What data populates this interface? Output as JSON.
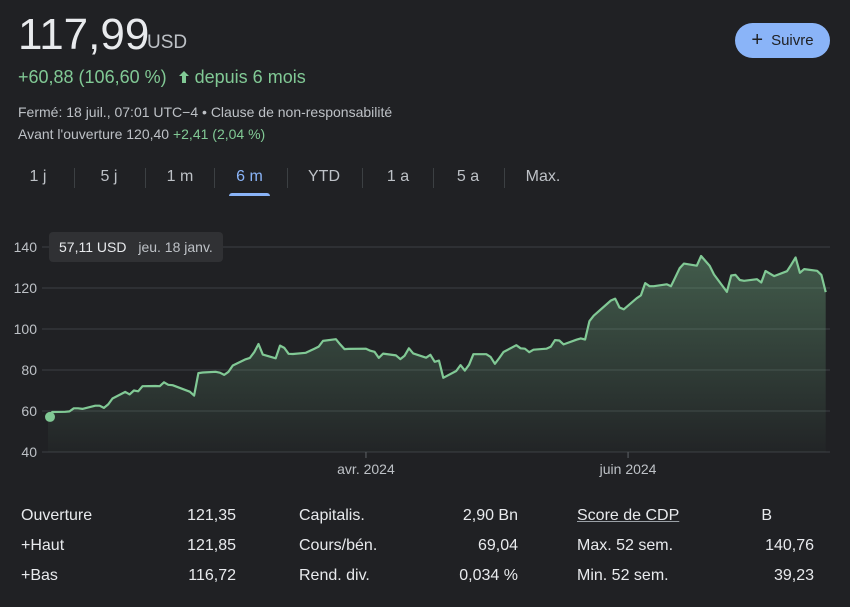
{
  "header": {
    "price": "117,99",
    "currency": "USD",
    "change": "+60,88 (106,60 %)",
    "change_period": "depuis 6 mois",
    "closed_text": "Fermé: 18 juil., 07:01 UTC−4 • Clause de non-responsabilité",
    "preopen_label": "Avant l'ouverture 120,40",
    "preopen_change": "+2,41 (2,04 %)",
    "follow_label": "Suivre"
  },
  "tabs": [
    "1 j",
    "5 j",
    "1 m",
    "6 m",
    "YTD",
    "1 a",
    "5 a",
    "Max."
  ],
  "active_tab": "6 m",
  "tooltip": {
    "value": "57,11 USD",
    "date": "jeu. 18 janv."
  },
  "chart_data": {
    "type": "area",
    "x_start": "2024-01-18",
    "x_end": "2024-07-18",
    "y_ticks": [
      40,
      60,
      80,
      100,
      120,
      140
    ],
    "ylim": [
      40,
      140
    ],
    "x_tick_labels": [
      {
        "label": "avr. 2024",
        "date": "2024-04-01"
      },
      {
        "label": "juin 2024",
        "date": "2024-06-01"
      }
    ],
    "grid": true,
    "line_color": "#81c995",
    "series": [
      {
        "points": [
          [
            "2024-01-18",
            57.1
          ],
          [
            "2024-01-19",
            59.5
          ],
          [
            "2024-01-22",
            59.6
          ],
          [
            "2024-01-23",
            59.8
          ],
          [
            "2024-01-24",
            61.3
          ],
          [
            "2024-01-25",
            61.3
          ],
          [
            "2024-01-26",
            61.0
          ],
          [
            "2024-01-29",
            62.6
          ],
          [
            "2024-01-30",
            62.6
          ],
          [
            "2024-01-31",
            61.5
          ],
          [
            "2024-02-01",
            63.2
          ],
          [
            "2024-02-02",
            66.1
          ],
          [
            "2024-02-05",
            69.3
          ],
          [
            "2024-02-06",
            68.1
          ],
          [
            "2024-02-07",
            70.0
          ],
          [
            "2024-02-08",
            69.6
          ],
          [
            "2024-02-09",
            72.1
          ],
          [
            "2024-02-12",
            72.2
          ],
          [
            "2024-02-13",
            72.1
          ],
          [
            "2024-02-14",
            74.0
          ],
          [
            "2024-02-15",
            72.8
          ],
          [
            "2024-02-16",
            72.6
          ],
          [
            "2024-02-20",
            69.4
          ],
          [
            "2024-02-21",
            67.5
          ],
          [
            "2024-02-22",
            78.5
          ],
          [
            "2024-02-23",
            78.8
          ],
          [
            "2024-02-26",
            79.1
          ],
          [
            "2024-02-27",
            78.7
          ],
          [
            "2024-02-28",
            77.6
          ],
          [
            "2024-02-29",
            79.1
          ],
          [
            "2024-03-01",
            82.2
          ],
          [
            "2024-03-04",
            85.2
          ],
          [
            "2024-03-05",
            85.9
          ],
          [
            "2024-03-06",
            88.7
          ],
          [
            "2024-03-07",
            92.7
          ],
          [
            "2024-03-08",
            87.5
          ],
          [
            "2024-03-11",
            85.7
          ],
          [
            "2024-03-12",
            91.9
          ],
          [
            "2024-03-13",
            90.8
          ],
          [
            "2024-03-14",
            87.9
          ],
          [
            "2024-03-15",
            87.8
          ],
          [
            "2024-03-18",
            88.4
          ],
          [
            "2024-03-19",
            89.4
          ],
          [
            "2024-03-20",
            90.4
          ],
          [
            "2024-03-21",
            91.4
          ],
          [
            "2024-03-22",
            94.2
          ],
          [
            "2024-03-25",
            95.0
          ],
          [
            "2024-03-26",
            92.5
          ],
          [
            "2024-03-27",
            90.2
          ],
          [
            "2024-03-28",
            90.3
          ],
          [
            "2024-04-01",
            90.4
          ],
          [
            "2024-04-02",
            89.4
          ],
          [
            "2024-04-03",
            88.9
          ],
          [
            "2024-04-04",
            85.9
          ],
          [
            "2024-04-05",
            88.0
          ],
          [
            "2024-04-08",
            87.1
          ],
          [
            "2024-04-09",
            85.3
          ],
          [
            "2024-04-10",
            87.0
          ],
          [
            "2024-04-11",
            90.6
          ],
          [
            "2024-04-12",
            88.1
          ],
          [
            "2024-04-15",
            86.0
          ],
          [
            "2024-04-16",
            87.4
          ],
          [
            "2024-04-17",
            84.0
          ],
          [
            "2024-04-18",
            84.6
          ],
          [
            "2024-04-19",
            76.2
          ],
          [
            "2024-04-22",
            79.5
          ],
          [
            "2024-04-23",
            82.4
          ],
          [
            "2024-04-24",
            79.7
          ],
          [
            "2024-04-25",
            82.6
          ],
          [
            "2024-04-26",
            87.7
          ],
          [
            "2024-04-29",
            87.7
          ],
          [
            "2024-04-30",
            86.4
          ],
          [
            "2024-05-01",
            83.0
          ],
          [
            "2024-05-02",
            85.8
          ],
          [
            "2024-05-03",
            88.8
          ],
          [
            "2024-05-06",
            92.1
          ],
          [
            "2024-05-07",
            90.6
          ],
          [
            "2024-05-08",
            90.4
          ],
          [
            "2024-05-09",
            88.7
          ],
          [
            "2024-05-10",
            89.9
          ],
          [
            "2024-05-13",
            90.4
          ],
          [
            "2024-05-14",
            91.3
          ],
          [
            "2024-05-15",
            94.6
          ],
          [
            "2024-05-16",
            94.4
          ],
          [
            "2024-05-17",
            92.5
          ],
          [
            "2024-05-20",
            94.8
          ],
          [
            "2024-05-21",
            95.4
          ],
          [
            "2024-05-22",
            94.9
          ],
          [
            "2024-05-23",
            103.8
          ],
          [
            "2024-05-24",
            106.5
          ],
          [
            "2024-05-28",
            113.9
          ],
          [
            "2024-05-29",
            114.8
          ],
          [
            "2024-05-30",
            110.5
          ],
          [
            "2024-05-31",
            109.6
          ],
          [
            "2024-06-03",
            115.0
          ],
          [
            "2024-06-04",
            116.4
          ],
          [
            "2024-06-05",
            122.4
          ],
          [
            "2024-06-06",
            120.9
          ],
          [
            "2024-06-07",
            120.9
          ],
          [
            "2024-06-10",
            121.8
          ],
          [
            "2024-06-11",
            120.9
          ],
          [
            "2024-06-12",
            125.2
          ],
          [
            "2024-06-13",
            129.6
          ],
          [
            "2024-06-14",
            131.9
          ],
          [
            "2024-06-17",
            130.9
          ],
          [
            "2024-06-18",
            135.6
          ],
          [
            "2024-06-20",
            130.8
          ],
          [
            "2024-06-21",
            126.6
          ],
          [
            "2024-06-24",
            118.1
          ],
          [
            "2024-06-25",
            126.1
          ],
          [
            "2024-06-26",
            126.4
          ],
          [
            "2024-06-27",
            123.9
          ],
          [
            "2024-06-28",
            123.5
          ],
          [
            "2024-07-01",
            124.3
          ],
          [
            "2024-07-02",
            122.7
          ],
          [
            "2024-07-03",
            128.3
          ],
          [
            "2024-07-05",
            125.8
          ],
          [
            "2024-07-08",
            128.2
          ],
          [
            "2024-07-09",
            131.4
          ],
          [
            "2024-07-10",
            134.9
          ],
          [
            "2024-07-11",
            127.4
          ],
          [
            "2024-07-12",
            129.2
          ],
          [
            "2024-07-15",
            128.4
          ],
          [
            "2024-07-16",
            126.4
          ],
          [
            "2024-07-17",
            117.99
          ]
        ]
      }
    ],
    "highlight_point": [
      "2024-01-18",
      57.11
    ]
  },
  "stats": {
    "col1": [
      {
        "label": "Ouverture",
        "value": "121,35"
      },
      {
        "label": "+Haut",
        "value": "121,85"
      },
      {
        "label": "+Bas",
        "value": "116,72"
      }
    ],
    "col2": [
      {
        "label": "Capitalis.",
        "value": "2,90 Bn"
      },
      {
        "label": "Cours/bén.",
        "value": "69,04"
      },
      {
        "label": "Rend. div.",
        "value": "0,034 %"
      }
    ],
    "col3": [
      {
        "label": "Score de CDP",
        "value": "B"
      },
      {
        "label": "Max. 52 sem.",
        "value": "140,76"
      },
      {
        "label": "Min. 52 sem.",
        "value": "39,23"
      }
    ]
  }
}
